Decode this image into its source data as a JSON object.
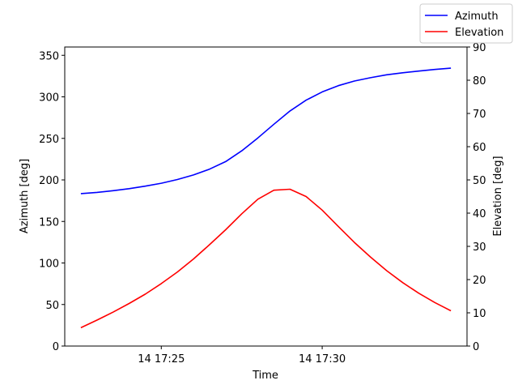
{
  "chart_data": {
    "type": "line",
    "xlabel": "Time",
    "ylabel_left": "Azimuth [deg]",
    "ylabel_right": "Elevation [deg]",
    "x_ticks": [
      "14 17:25",
      "14 17:30"
    ],
    "ylim_left": [
      0,
      360
    ],
    "yticks_left": [
      0,
      50,
      100,
      150,
      200,
      250,
      300,
      350
    ],
    "ylim_right": [
      0,
      90
    ],
    "yticks_right": [
      0,
      10,
      20,
      30,
      40,
      50,
      60,
      70,
      80,
      90
    ],
    "x_minutes": [
      "17:22:30",
      "17:23:00",
      "17:23:30",
      "17:24:00",
      "17:24:30",
      "17:25:00",
      "17:25:30",
      "17:26:00",
      "17:26:30",
      "17:27:00",
      "17:27:30",
      "17:28:00",
      "17:28:30",
      "17:29:00",
      "17:29:30",
      "17:30:00",
      "17:30:30",
      "17:31:00",
      "17:31:30",
      "17:32:00",
      "17:32:30",
      "17:33:00",
      "17:33:30",
      "17:34:00"
    ],
    "x_domain": [
      "17:22:00",
      "17:34:30"
    ],
    "legend_position": "top-right",
    "grid": false,
    "series": [
      {
        "name": "Azimuth",
        "axis": "left",
        "color": "#0000ff",
        "values": [
          183.5,
          185,
          187,
          189.5,
          192.5,
          196,
          200.5,
          206,
          213,
          222,
          235,
          250.5,
          267,
          283,
          296,
          306,
          313.5,
          319,
          323,
          326.5,
          329,
          331,
          333,
          334.5
        ]
      },
      {
        "name": "Elevation",
        "axis": "right",
        "color": "#ff0000",
        "values": [
          5.5,
          7.8,
          10.2,
          12.8,
          15.6,
          18.8,
          22.3,
          26.2,
          30.5,
          35,
          39.8,
          44.2,
          46.9,
          47.2,
          45,
          40.9,
          36,
          31.2,
          26.8,
          22.7,
          19.1,
          15.9,
          13.1,
          10.6
        ]
      }
    ]
  }
}
